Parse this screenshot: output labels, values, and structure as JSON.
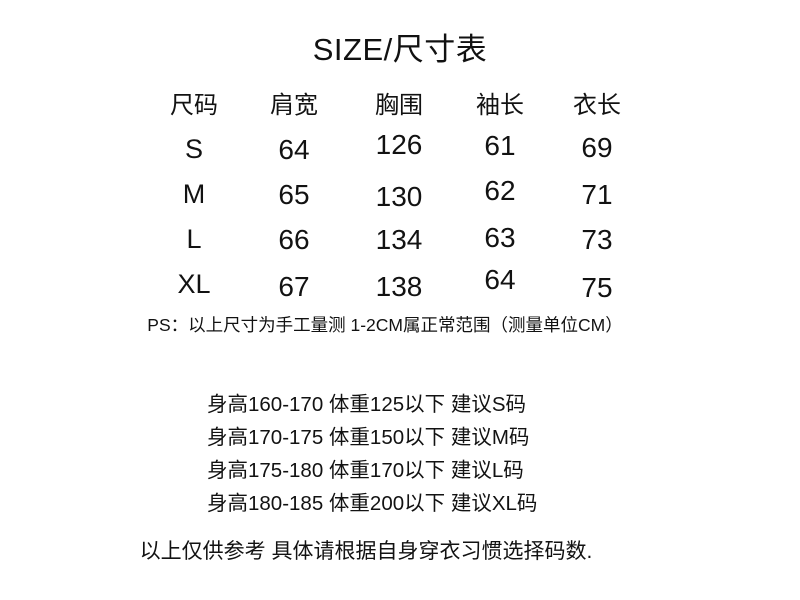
{
  "title": "SIZE/尺寸表",
  "size_table": {
    "columns": [
      "尺码",
      "肩宽",
      "胸围",
      "袖长",
      "衣长"
    ],
    "rows": [
      {
        "size": "S",
        "values": [
          "64",
          "126",
          "61",
          "69"
        ]
      },
      {
        "size": "M",
        "values": [
          "65",
          "130",
          "62",
          "71"
        ]
      },
      {
        "size": "L",
        "values": [
          "66",
          "134",
          "63",
          "73"
        ]
      },
      {
        "size": "XL",
        "values": [
          "67",
          "138",
          "64",
          "75"
        ]
      }
    ]
  },
  "ps_note": "PS：以上尺寸为手工量测 1-2CM属正常范围（测量单位CM）",
  "recommendations": [
    "身高160-170 体重125以下 建议S码",
    "身高170-175 体重150以下 建议M码",
    "身高175-180 体重170以下 建议L码",
    "身高180-185 体重200以下 建议XL码"
  ],
  "footer_note": "以上仅供参考 具体请根据自身穿衣习惯选择码数.",
  "colors": {
    "background": "#ffffff",
    "text": "#111111"
  }
}
